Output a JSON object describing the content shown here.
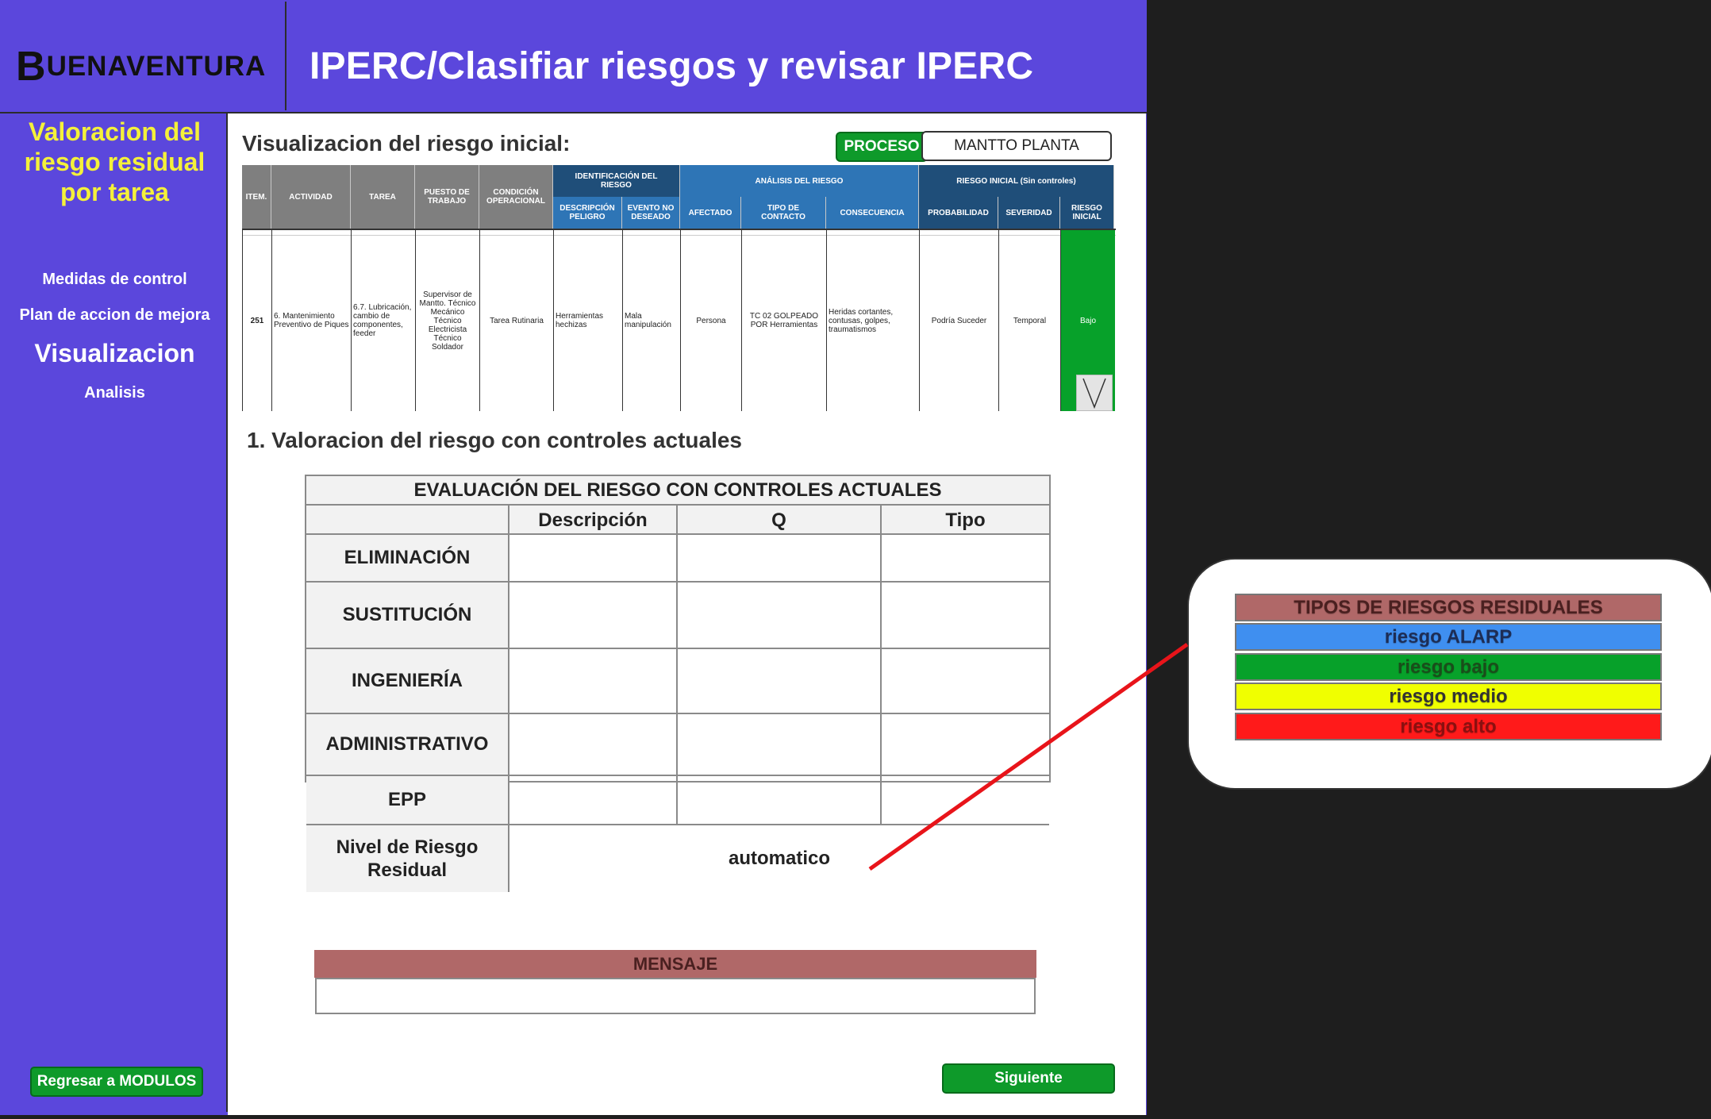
{
  "header": {
    "logo_initial": "B",
    "logo_rest": "UENAVENTURA",
    "title": "IPERC/Clasifiar riesgos y revisar IPERC"
  },
  "sidebar": {
    "heading": [
      "Valoracion del",
      "riesgo residual",
      "por tarea"
    ],
    "items": [
      {
        "label": "Medidas de control"
      },
      {
        "label": "Plan de accion de mejora"
      },
      {
        "label": "Visualizacion"
      },
      {
        "label": "Analisis"
      }
    ],
    "back_button": "Regresar a MODULOS"
  },
  "main": {
    "initial_section_title": "Visualizacion del riesgo inicial:",
    "proceso_label": "PROCESO",
    "proceso_value": "MANTTO PLANTA",
    "iperc": {
      "headers": {
        "item": "ITEM.",
        "actividad": "ACTIVIDAD",
        "tarea": "TAREA",
        "puesto": "PUESTO DE TRABAJO",
        "condicion": "CONDICIÓN OPERACIONAL",
        "group_ident": "IDENTIFICACIÓN DEL RIESGO",
        "desc_peligro": "DESCRIPCIÓN PELIGRO",
        "evento": "EVENTO NO DESEADO",
        "group_analisis": "ANÁLISIS DEL RIESGO",
        "afectado": "AFECTADO",
        "tipo_contacto": "TIPO DE CONTACTO",
        "consecuencia": "CONSECUENCIA",
        "group_inicial": "RIESGO INICIAL (Sin controles)",
        "probabilidad": "PROBABILIDAD",
        "severidad": "SEVERIDAD",
        "riesgo_inicial": "RIESGO INICIAL"
      },
      "row": {
        "item": "251",
        "actividad": "6. Mantenimiento Preventivo de Piques",
        "tarea": "6.7. Lubricación, cambio de componentes, feeder",
        "puesto": "Supervisor de Mantto. Técnico Mecánico Técnico Electricista Técnico Soldador",
        "condicion": "Tarea Rutinaria",
        "desc_peligro": "Herramientas hechizas",
        "evento": "Mala manipulación",
        "afectado": "Persona",
        "tipo_contacto": "TC 02 GOLPEADO POR Herramientas",
        "consecuencia": "Heridas cortantes, contusas, golpes, traumatismos",
        "probabilidad": "Podría Suceder",
        "severidad": "Temporal",
        "riesgo_inicial": "Bajo"
      }
    },
    "section1_title": "1.  Valoracion del riesgo con controles actuales",
    "eval": {
      "title": "EVALUACIÓN DEL RIESGO CON   CONTROLES ACTUALES",
      "col_descripcion": "Descripción",
      "col_q": "Q",
      "col_tipo": "Tipo",
      "rows": [
        "ELIMINACIÓN",
        "SUSTITUCIÓN",
        "INGENIERÍA",
        "ADMINISTRATIVO",
        "EPP"
      ],
      "residual_label": "Nivel de Riesgo Residual",
      "residual_value": "automatico"
    },
    "message_title": "MENSAJE",
    "next_button": "Siguiente"
  },
  "legend": {
    "title": "TIPOS DE RIESGOS RESIDUALES",
    "items": [
      {
        "label": "riesgo ALARP",
        "color": "#3f8ff0"
      },
      {
        "label": "riesgo bajo",
        "color": "#07a12a"
      },
      {
        "label": "riesgo medio",
        "color": "#f0ff00"
      },
      {
        "label": "riesgo alto",
        "color": "#ff1a1a"
      }
    ],
    "title_color": "#b06868"
  },
  "colors": {
    "brand": "#5b47dc",
    "accent_green": "#0e9a2a",
    "connector": "#e8141a"
  }
}
